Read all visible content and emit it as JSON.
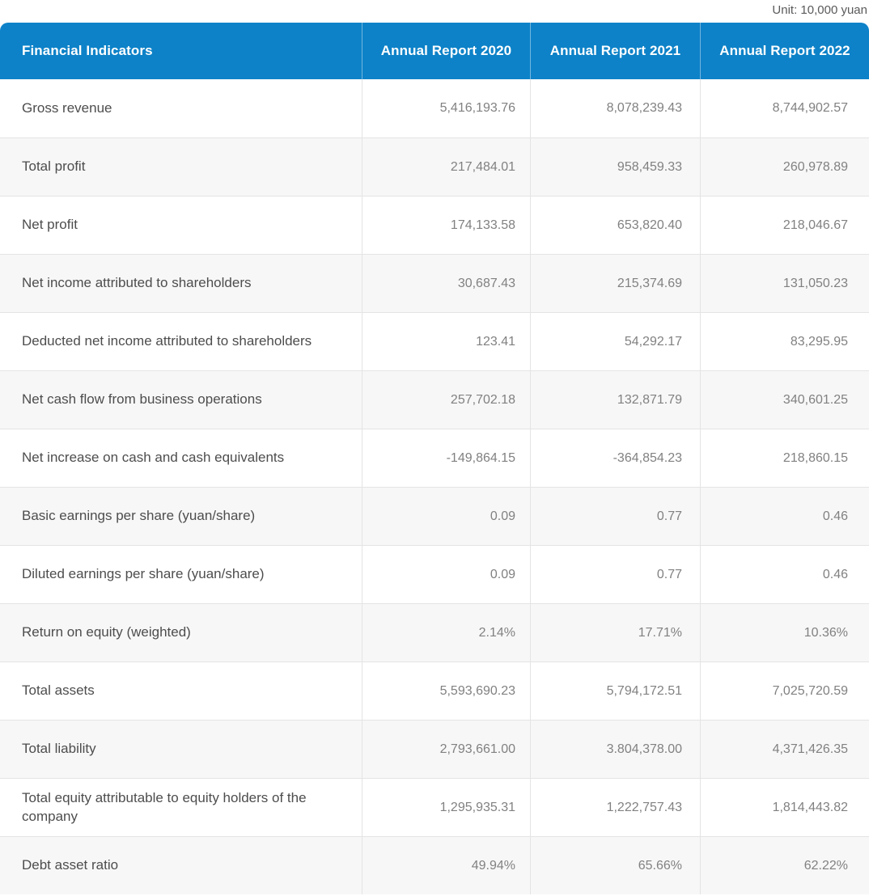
{
  "unit_note": "Unit: 10,000 yuan",
  "colors": {
    "header_bg": "#0d82c8",
    "header_text": "#ffffff",
    "row_alt_bg": "#f7f7f7",
    "border": "#e4e4e4",
    "label_text": "#4d4d4d",
    "value_text": "#818181",
    "unit_text": "#5a5a5a"
  },
  "chart_data": {
    "type": "table",
    "title": "Financial Indicators by Annual Report Year",
    "unit": "10,000 yuan",
    "columns": [
      "Financial Indicators",
      "Annual Report 2020",
      "Annual Report 2021",
      "Annual Report 2022"
    ],
    "rows": [
      {
        "label": "Gross revenue",
        "values": [
          "5,416,193.76",
          "8,078,239.43",
          "8,744,902.57"
        ]
      },
      {
        "label": "Total profit",
        "values": [
          "217,484.01",
          "958,459.33",
          "260,978.89"
        ]
      },
      {
        "label": "Net profit",
        "values": [
          "174,133.58",
          "653,820.40",
          "218,046.67"
        ]
      },
      {
        "label": "Net income attributed to shareholders",
        "values": [
          "30,687.43",
          "215,374.69",
          "131,050.23"
        ]
      },
      {
        "label": "Deducted net income attributed to shareholders",
        "values": [
          "123.41",
          "54,292.17",
          "83,295.95"
        ]
      },
      {
        "label": "Net cash flow from business operations",
        "values": [
          "257,702.18",
          "132,871.79",
          "340,601.25"
        ]
      },
      {
        "label": "Net increase on cash and cash equivalents",
        "values": [
          "-149,864.15",
          "-364,854.23",
          "218,860.15"
        ]
      },
      {
        "label": "Basic earnings per share (yuan/share)",
        "values": [
          "0.09",
          "0.77",
          "0.46"
        ]
      },
      {
        "label": "Diluted earnings per share (yuan/share)",
        "values": [
          "0.09",
          "0.77",
          "0.46"
        ]
      },
      {
        "label": "Return on equity (weighted)",
        "values": [
          "2.14%",
          "17.71%",
          "10.36%"
        ]
      },
      {
        "label": "Total assets",
        "values": [
          "5,593,690.23",
          "5,794,172.51",
          "7,025,720.59"
        ]
      },
      {
        "label": "Total liability",
        "values": [
          "2,793,661.00",
          "3.804,378.00",
          "4,371,426.35"
        ]
      },
      {
        "label": "Total equity attributable to equity holders of the company",
        "values": [
          "1,295,935.31",
          "1,222,757.43",
          "1,814,443.82"
        ]
      },
      {
        "label": "Debt asset ratio",
        "values": [
          "49.94%",
          "65.66%",
          "62.22%"
        ]
      }
    ]
  }
}
